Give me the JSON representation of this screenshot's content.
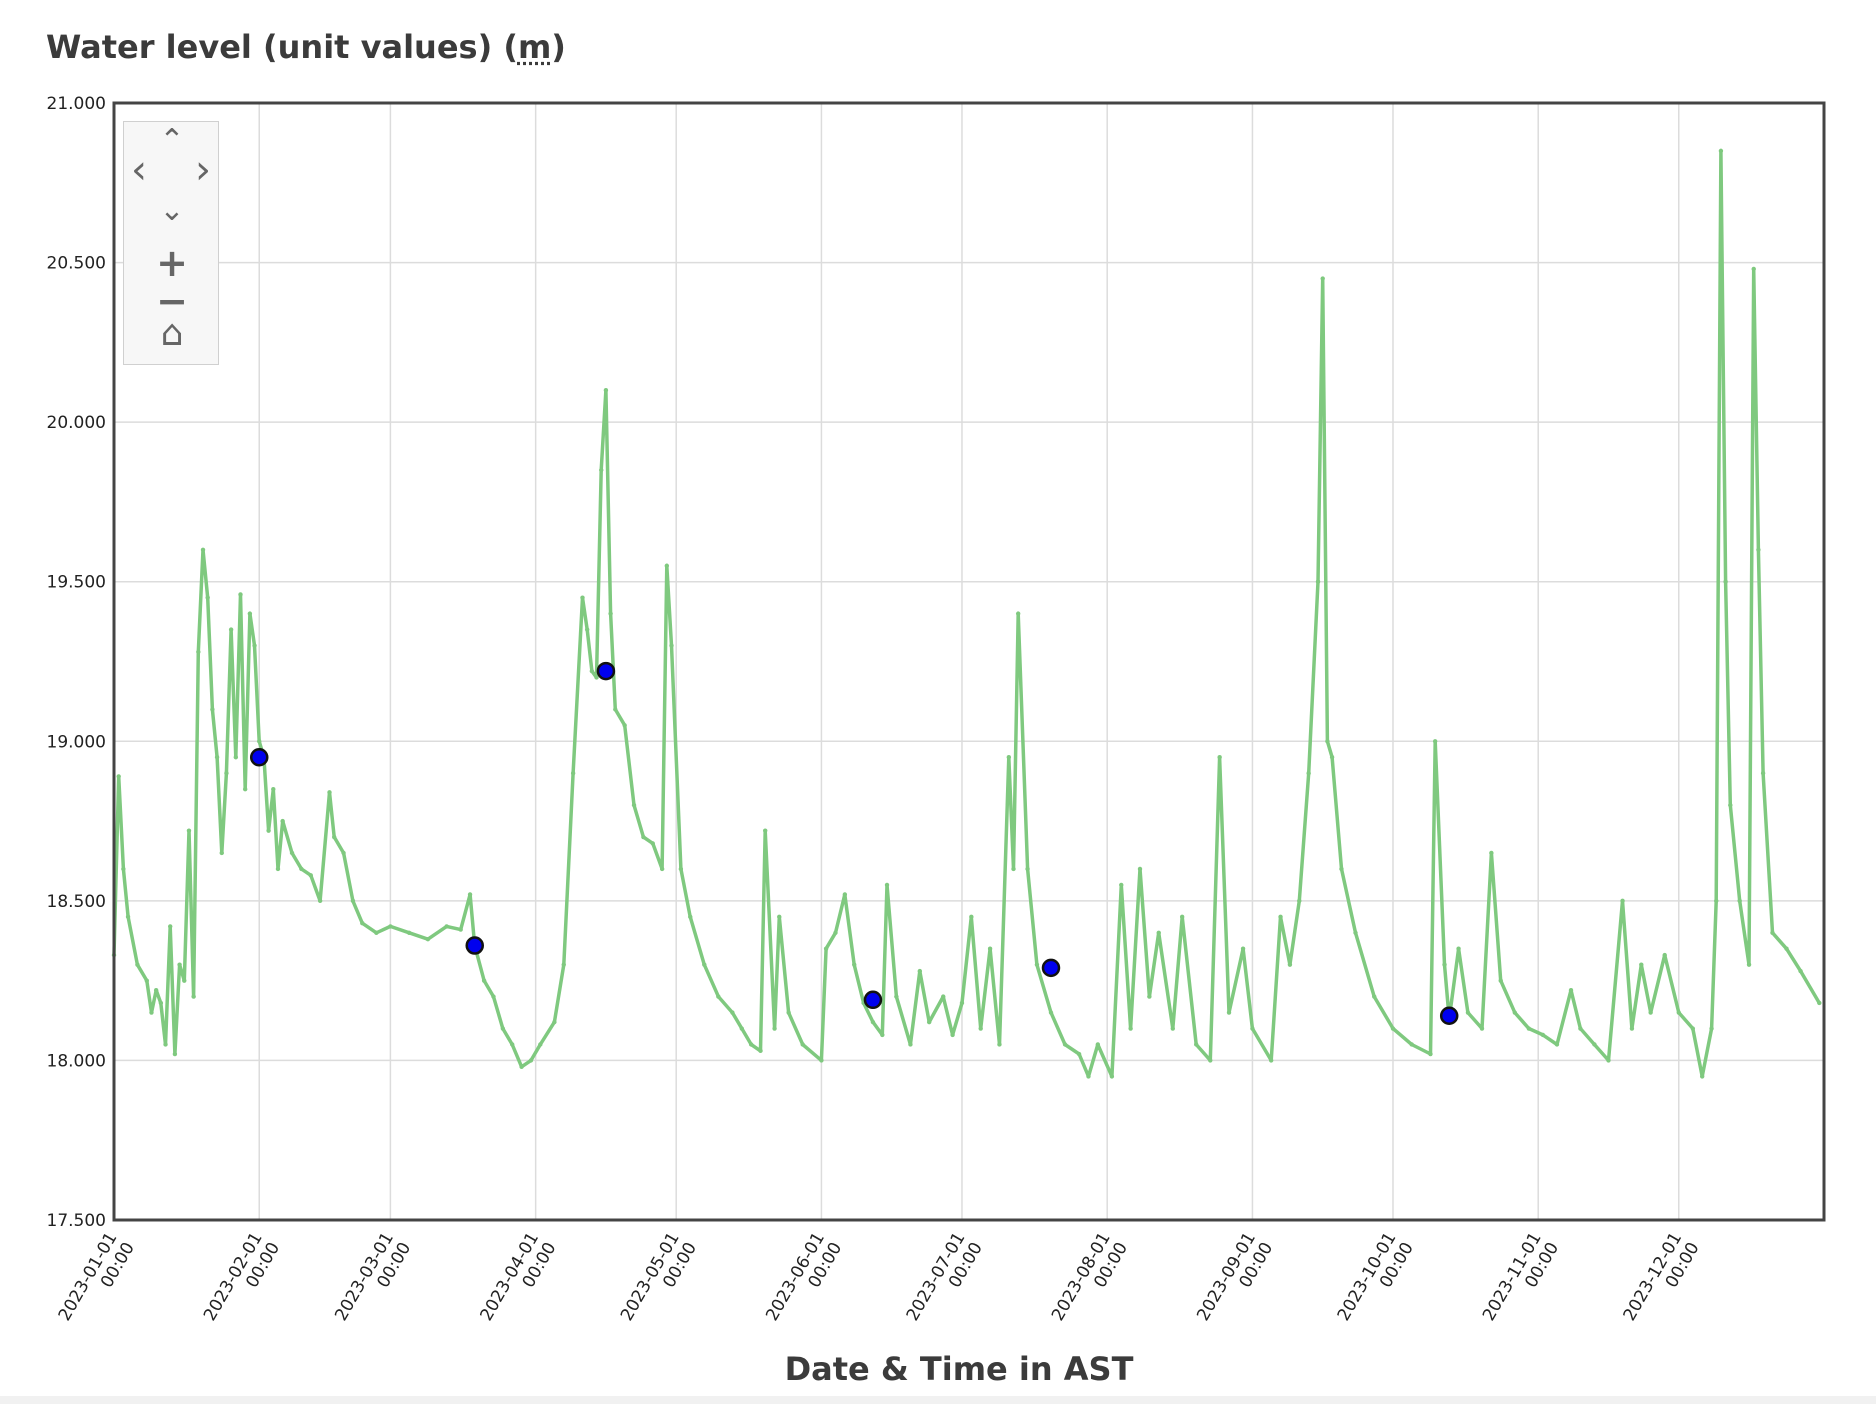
{
  "title": {
    "text": "Water level (unit values) (",
    "unit": "m",
    "close": ")"
  },
  "navigation": {
    "pan_up": "⌃",
    "pan_left": "‹",
    "pan_right": "›",
    "pan_down": "⌄",
    "zoom_in": "+",
    "zoom_out": "−",
    "home": "⌂"
  },
  "chart_data": {
    "type": "line",
    "title": "Water level (unit values) (m)",
    "xlabel": "Date & Time in AST",
    "ylabel": "",
    "ylim": [
      17.5,
      21.0
    ],
    "xlim": [
      "2023-01-01",
      "2023-12-31"
    ],
    "grid": true,
    "yticks": [
      "17.500",
      "18.000",
      "18.500",
      "19.000",
      "19.500",
      "20.000",
      "20.500",
      "21.000"
    ],
    "xticks": [
      {
        "date": "2023-01-01",
        "line1": "2023-01-01",
        "line2": "00:00"
      },
      {
        "date": "2023-02-01",
        "line1": "2023-02-01",
        "line2": "00:00"
      },
      {
        "date": "2023-03-01",
        "line1": "2023-03-01",
        "line2": "00:00"
      },
      {
        "date": "2023-04-01",
        "line1": "2023-04-01",
        "line2": "00:00"
      },
      {
        "date": "2023-05-01",
        "line1": "2023-05-01",
        "line2": "00:00"
      },
      {
        "date": "2023-06-01",
        "line1": "2023-06-01",
        "line2": "00:00"
      },
      {
        "date": "2023-07-01",
        "line1": "2023-07-01",
        "line2": "00:00"
      },
      {
        "date": "2023-08-01",
        "line1": "2023-08-01",
        "line2": "00:00"
      },
      {
        "date": "2023-09-01",
        "line1": "2023-09-01",
        "line2": "00:00"
      },
      {
        "date": "2023-10-01",
        "line1": "2023-10-01",
        "line2": "00:00"
      },
      {
        "date": "2023-11-01",
        "line1": "2023-11-01",
        "line2": "00:00"
      },
      {
        "date": "2023-12-01",
        "line1": "2023-12-01",
        "line2": "00:00"
      }
    ],
    "series": [
      {
        "color": "#7fc97f",
        "points": [
          [
            "2023-01-01",
            18.33
          ],
          [
            "2023-01-02",
            18.89
          ],
          [
            "2023-01-03",
            18.6
          ],
          [
            "2023-01-04",
            18.45
          ],
          [
            "2023-01-06",
            18.3
          ],
          [
            "2023-01-08",
            18.25
          ],
          [
            "2023-01-09",
            18.15
          ],
          [
            "2023-01-10",
            18.22
          ],
          [
            "2023-01-11",
            18.18
          ],
          [
            "2023-01-12",
            18.05
          ],
          [
            "2023-01-13",
            18.42
          ],
          [
            "2023-01-14",
            18.02
          ],
          [
            "2023-01-15",
            18.3
          ],
          [
            "2023-01-16",
            18.25
          ],
          [
            "2023-01-17",
            18.72
          ],
          [
            "2023-01-18",
            18.2
          ],
          [
            "2023-01-19",
            19.28
          ],
          [
            "2023-01-20",
            19.6
          ],
          [
            "2023-01-21",
            19.45
          ],
          [
            "2023-01-22",
            19.1
          ],
          [
            "2023-01-23",
            18.95
          ],
          [
            "2023-01-24",
            18.65
          ],
          [
            "2023-01-25",
            18.9
          ],
          [
            "2023-01-26",
            19.35
          ],
          [
            "2023-01-27",
            18.95
          ],
          [
            "2023-01-28",
            19.46
          ],
          [
            "2023-01-29",
            18.85
          ],
          [
            "2023-01-30",
            19.4
          ],
          [
            "2023-01-31",
            19.3
          ],
          [
            "2023-02-01",
            19.0
          ],
          [
            "2023-02-02",
            18.95
          ],
          [
            "2023-02-03",
            18.72
          ],
          [
            "2023-02-04",
            18.85
          ],
          [
            "2023-02-05",
            18.6
          ],
          [
            "2023-02-06",
            18.75
          ],
          [
            "2023-02-08",
            18.65
          ],
          [
            "2023-02-10",
            18.6
          ],
          [
            "2023-02-12",
            18.58
          ],
          [
            "2023-02-14",
            18.5
          ],
          [
            "2023-02-16",
            18.84
          ],
          [
            "2023-02-17",
            18.7
          ],
          [
            "2023-02-19",
            18.65
          ],
          [
            "2023-02-21",
            18.5
          ],
          [
            "2023-02-23",
            18.43
          ],
          [
            "2023-02-26",
            18.4
          ],
          [
            "2023-03-01",
            18.42
          ],
          [
            "2023-03-05",
            18.4
          ],
          [
            "2023-03-09",
            18.38
          ],
          [
            "2023-03-13",
            18.42
          ],
          [
            "2023-03-16",
            18.41
          ],
          [
            "2023-03-18",
            18.52
          ],
          [
            "2023-03-19",
            18.36
          ],
          [
            "2023-03-21",
            18.25
          ],
          [
            "2023-03-23",
            18.2
          ],
          [
            "2023-03-25",
            18.1
          ],
          [
            "2023-03-27",
            18.05
          ],
          [
            "2023-03-29",
            17.98
          ],
          [
            "2023-03-31",
            18.0
          ],
          [
            "2023-04-02",
            18.05
          ],
          [
            "2023-04-05",
            18.12
          ],
          [
            "2023-04-07",
            18.3
          ],
          [
            "2023-04-09",
            18.9
          ],
          [
            "2023-04-11",
            19.45
          ],
          [
            "2023-04-12",
            19.35
          ],
          [
            "2023-04-13",
            19.22
          ],
          [
            "2023-04-14",
            19.2
          ],
          [
            "2023-04-15",
            19.85
          ],
          [
            "2023-04-16",
            20.1
          ],
          [
            "2023-04-17",
            19.4
          ],
          [
            "2023-04-18",
            19.1
          ],
          [
            "2023-04-20",
            19.05
          ],
          [
            "2023-04-22",
            18.8
          ],
          [
            "2023-04-24",
            18.7
          ],
          [
            "2023-04-26",
            18.68
          ],
          [
            "2023-04-28",
            18.6
          ],
          [
            "2023-04-29",
            19.55
          ],
          [
            "2023-04-30",
            19.3
          ],
          [
            "2023-05-02",
            18.6
          ],
          [
            "2023-05-04",
            18.45
          ],
          [
            "2023-05-07",
            18.3
          ],
          [
            "2023-05-10",
            18.2
          ],
          [
            "2023-05-13",
            18.15
          ],
          [
            "2023-05-15",
            18.1
          ],
          [
            "2023-05-17",
            18.05
          ],
          [
            "2023-05-19",
            18.03
          ],
          [
            "2023-05-20",
            18.72
          ],
          [
            "2023-05-22",
            18.1
          ],
          [
            "2023-05-23",
            18.45
          ],
          [
            "2023-05-25",
            18.15
          ],
          [
            "2023-05-28",
            18.05
          ],
          [
            "2023-06-01",
            18.0
          ],
          [
            "2023-06-02",
            18.35
          ],
          [
            "2023-06-04",
            18.4
          ],
          [
            "2023-06-06",
            18.52
          ],
          [
            "2023-06-08",
            18.3
          ],
          [
            "2023-06-10",
            18.18
          ],
          [
            "2023-06-12",
            18.12
          ],
          [
            "2023-06-14",
            18.08
          ],
          [
            "2023-06-15",
            18.55
          ],
          [
            "2023-06-17",
            18.2
          ],
          [
            "2023-06-20",
            18.05
          ],
          [
            "2023-06-22",
            18.28
          ],
          [
            "2023-06-24",
            18.12
          ],
          [
            "2023-06-27",
            18.2
          ],
          [
            "2023-06-29",
            18.08
          ],
          [
            "2023-07-01",
            18.18
          ],
          [
            "2023-07-03",
            18.45
          ],
          [
            "2023-07-05",
            18.1
          ],
          [
            "2023-07-07",
            18.35
          ],
          [
            "2023-07-09",
            18.05
          ],
          [
            "2023-07-11",
            18.95
          ],
          [
            "2023-07-12",
            18.6
          ],
          [
            "2023-07-13",
            19.4
          ],
          [
            "2023-07-15",
            18.6
          ],
          [
            "2023-07-17",
            18.3
          ],
          [
            "2023-07-20",
            18.15
          ],
          [
            "2023-07-23",
            18.05
          ],
          [
            "2023-07-26",
            18.02
          ],
          [
            "2023-07-28",
            17.95
          ],
          [
            "2023-07-30",
            18.05
          ],
          [
            "2023-08-02",
            17.95
          ],
          [
            "2023-08-04",
            18.55
          ],
          [
            "2023-08-06",
            18.1
          ],
          [
            "2023-08-08",
            18.6
          ],
          [
            "2023-08-10",
            18.2
          ],
          [
            "2023-08-12",
            18.4
          ],
          [
            "2023-08-15",
            18.1
          ],
          [
            "2023-08-17",
            18.45
          ],
          [
            "2023-08-20",
            18.05
          ],
          [
            "2023-08-23",
            18.0
          ],
          [
            "2023-08-25",
            18.95
          ],
          [
            "2023-08-27",
            18.15
          ],
          [
            "2023-08-30",
            18.35
          ],
          [
            "2023-09-01",
            18.1
          ],
          [
            "2023-09-05",
            18.0
          ],
          [
            "2023-09-07",
            18.45
          ],
          [
            "2023-09-09",
            18.3
          ],
          [
            "2023-09-11",
            18.5
          ],
          [
            "2023-09-13",
            18.9
          ],
          [
            "2023-09-15",
            19.5
          ],
          [
            "2023-09-16",
            20.45
          ],
          [
            "2023-09-17",
            19.0
          ],
          [
            "2023-09-18",
            18.95
          ],
          [
            "2023-09-20",
            18.6
          ],
          [
            "2023-09-23",
            18.4
          ],
          [
            "2023-09-27",
            18.2
          ],
          [
            "2023-10-01",
            18.1
          ],
          [
            "2023-10-05",
            18.05
          ],
          [
            "2023-10-09",
            18.02
          ],
          [
            "2023-10-10",
            19.0
          ],
          [
            "2023-10-12",
            18.3
          ],
          [
            "2023-10-13",
            18.13
          ],
          [
            "2023-10-15",
            18.35
          ],
          [
            "2023-10-17",
            18.15
          ],
          [
            "2023-10-20",
            18.1
          ],
          [
            "2023-10-22",
            18.65
          ],
          [
            "2023-10-24",
            18.25
          ],
          [
            "2023-10-27",
            18.15
          ],
          [
            "2023-10-30",
            18.1
          ],
          [
            "2023-11-02",
            18.08
          ],
          [
            "2023-11-05",
            18.05
          ],
          [
            "2023-11-08",
            18.22
          ],
          [
            "2023-11-10",
            18.1
          ],
          [
            "2023-11-13",
            18.05
          ],
          [
            "2023-11-16",
            18.0
          ],
          [
            "2023-11-19",
            18.5
          ],
          [
            "2023-11-21",
            18.1
          ],
          [
            "2023-11-23",
            18.3
          ],
          [
            "2023-11-25",
            18.15
          ],
          [
            "2023-11-28",
            18.33
          ],
          [
            "2023-12-01",
            18.15
          ],
          [
            "2023-12-04",
            18.1
          ],
          [
            "2023-12-06",
            17.95
          ],
          [
            "2023-12-08",
            18.1
          ],
          [
            "2023-12-09",
            18.5
          ],
          [
            "2023-12-10",
            20.85
          ],
          [
            "2023-12-11",
            19.5
          ],
          [
            "2023-12-12",
            18.8
          ],
          [
            "2023-12-14",
            18.5
          ],
          [
            "2023-12-16",
            18.3
          ],
          [
            "2023-12-17",
            20.48
          ],
          [
            "2023-12-18",
            19.6
          ],
          [
            "2023-12-19",
            18.9
          ],
          [
            "2023-12-21",
            18.4
          ],
          [
            "2023-12-24",
            18.35
          ],
          [
            "2023-12-27",
            18.28
          ],
          [
            "2023-12-31",
            18.18
          ]
        ]
      }
    ],
    "markers": [
      {
        "x": "2023-02-01",
        "y": 18.95,
        "color": "#0000ee"
      },
      {
        "x": "2023-03-19",
        "y": 18.36,
        "color": "#0000ee"
      },
      {
        "x": "2023-04-16",
        "y": 19.22,
        "color": "#0000ee"
      },
      {
        "x": "2023-06-12",
        "y": 18.19,
        "color": "#0000ee"
      },
      {
        "x": "2023-07-20",
        "y": 18.29,
        "color": "#0000ee"
      },
      {
        "x": "2023-10-13",
        "y": 18.14,
        "color": "#0000ee"
      }
    ]
  }
}
